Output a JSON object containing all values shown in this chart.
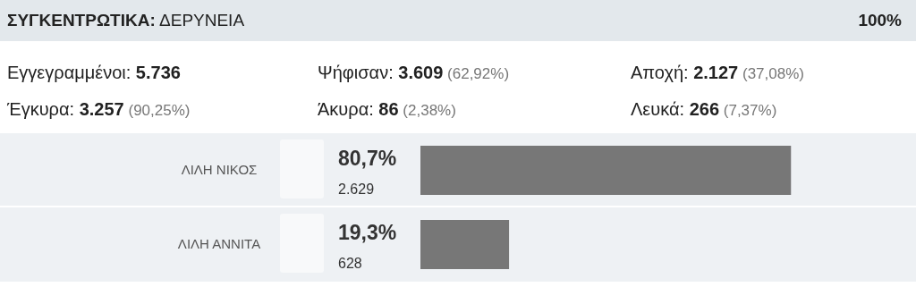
{
  "chart_data": {
    "type": "bar",
    "orientation": "horizontal",
    "title": "ΣΥΓΚΕΝΤΡΩΤΙΚΑ: ΔΕΡΥΝΕΙΑ",
    "subtitle": "100%",
    "categories": [
      "ΛΙΛΗ ΝΙΚΟΣ",
      "ΛΙΛΗ ΑΝΝΙΤΑ"
    ],
    "values": [
      80.7,
      19.3
    ],
    "color": "#777777",
    "value_labels": [
      "80,7%",
      "19,3%"
    ],
    "tick_labels": "y",
    "legend": false,
    "annotations": [
      "Εγγεγραμμένοι: 5.736",
      "Ψήφισαν: 3.609 (62,92%)",
      "Αποχή: 2.127 (37,08%)",
      "Έγκυρα: 3.257 (90,25%)",
      "Άκυρα: 86 (2,38%)",
      "Λευκά: 266 (7,37%)",
      "2.629",
      "628"
    ]
  }
}
